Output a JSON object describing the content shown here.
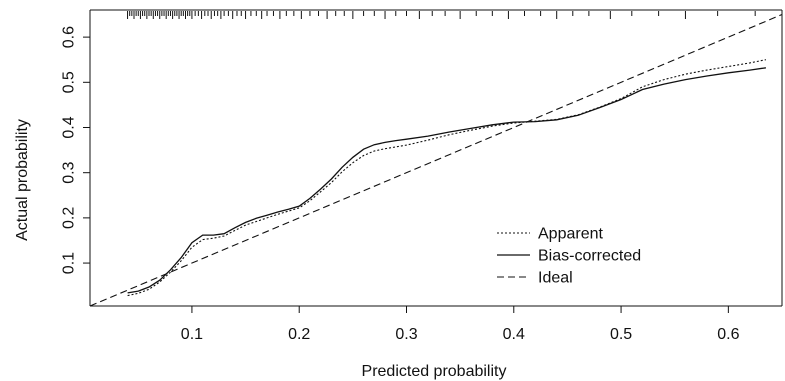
{
  "chart_data": {
    "type": "line",
    "xlabel": "Predicted probability",
    "ylabel": "Actual probability",
    "xlim": [
      0.005,
      0.65
    ],
    "ylim": [
      0.005,
      0.66
    ],
    "x_ticks": [
      0.1,
      0.2,
      0.3,
      0.4,
      0.5,
      0.6
    ],
    "y_ticks": [
      0.1,
      0.2,
      0.3,
      0.4,
      0.5,
      0.6
    ],
    "grid": false,
    "legend_position": "bottom-right",
    "series": [
      {
        "name": "Apparent",
        "style": "dotted",
        "color": "#111111",
        "x": [
          0.04,
          0.05,
          0.06,
          0.07,
          0.08,
          0.09,
          0.1,
          0.11,
          0.12,
          0.13,
          0.14,
          0.15,
          0.16,
          0.17,
          0.18,
          0.19,
          0.2,
          0.21,
          0.22,
          0.23,
          0.24,
          0.25,
          0.26,
          0.27,
          0.28,
          0.29,
          0.3,
          0.32,
          0.34,
          0.36,
          0.38,
          0.4,
          0.42,
          0.44,
          0.46,
          0.48,
          0.5,
          0.52,
          0.54,
          0.56,
          0.58,
          0.6,
          0.62,
          0.635
        ],
        "y": [
          0.028,
          0.033,
          0.042,
          0.058,
          0.08,
          0.105,
          0.135,
          0.152,
          0.155,
          0.16,
          0.172,
          0.184,
          0.192,
          0.2,
          0.208,
          0.215,
          0.222,
          0.238,
          0.258,
          0.278,
          0.302,
          0.322,
          0.338,
          0.348,
          0.353,
          0.357,
          0.361,
          0.372,
          0.384,
          0.394,
          0.403,
          0.41,
          0.414,
          0.418,
          0.428,
          0.445,
          0.464,
          0.49,
          0.506,
          0.518,
          0.527,
          0.535,
          0.543,
          0.55
        ]
      },
      {
        "name": "Bias-corrected",
        "style": "solid",
        "color": "#111111",
        "x": [
          0.04,
          0.05,
          0.06,
          0.07,
          0.08,
          0.09,
          0.1,
          0.11,
          0.12,
          0.13,
          0.14,
          0.15,
          0.16,
          0.17,
          0.18,
          0.19,
          0.2,
          0.21,
          0.22,
          0.23,
          0.24,
          0.25,
          0.26,
          0.27,
          0.28,
          0.29,
          0.3,
          0.32,
          0.34,
          0.36,
          0.38,
          0.4,
          0.42,
          0.44,
          0.46,
          0.48,
          0.5,
          0.52,
          0.54,
          0.56,
          0.58,
          0.6,
          0.62,
          0.635
        ],
        "y": [
          0.034,
          0.038,
          0.047,
          0.062,
          0.085,
          0.112,
          0.145,
          0.162,
          0.162,
          0.165,
          0.178,
          0.19,
          0.199,
          0.206,
          0.213,
          0.219,
          0.226,
          0.243,
          0.264,
          0.286,
          0.312,
          0.334,
          0.352,
          0.362,
          0.367,
          0.371,
          0.374,
          0.381,
          0.39,
          0.398,
          0.406,
          0.412,
          0.413,
          0.417,
          0.427,
          0.444,
          0.462,
          0.484,
          0.496,
          0.506,
          0.514,
          0.521,
          0.527,
          0.532
        ]
      },
      {
        "name": "Ideal",
        "style": "dashed",
        "color": "#111111",
        "x": [
          0.005,
          0.65
        ],
        "y": [
          0.005,
          0.65
        ]
      }
    ],
    "rug_x": [
      0.04,
      0.042,
      0.044,
      0.046,
      0.048,
      0.05,
      0.052,
      0.054,
      0.056,
      0.058,
      0.06,
      0.062,
      0.064,
      0.066,
      0.068,
      0.07,
      0.072,
      0.074,
      0.076,
      0.078,
      0.08,
      0.082,
      0.084,
      0.086,
      0.088,
      0.09,
      0.092,
      0.094,
      0.096,
      0.098,
      0.1,
      0.103,
      0.106,
      0.109,
      0.112,
      0.115,
      0.118,
      0.121,
      0.124,
      0.127,
      0.13,
      0.134,
      0.138,
      0.142,
      0.146,
      0.15,
      0.155,
      0.16,
      0.165,
      0.17,
      0.176,
      0.182,
      0.188,
      0.195,
      0.202,
      0.21,
      0.218,
      0.226,
      0.234,
      0.242,
      0.25,
      0.26,
      0.27,
      0.28,
      0.29,
      0.3,
      0.312,
      0.324,
      0.336,
      0.35,
      0.365,
      0.38,
      0.395,
      0.41,
      0.425,
      0.44,
      0.455,
      0.47,
      0.49,
      0.51,
      0.535,
      0.56,
      0.59,
      0.625
    ],
    "legend": [
      {
        "label": "Apparent",
        "style": "dotted"
      },
      {
        "label": "Bias-corrected",
        "style": "solid"
      },
      {
        "label": "Ideal",
        "style": "dashed"
      }
    ]
  }
}
